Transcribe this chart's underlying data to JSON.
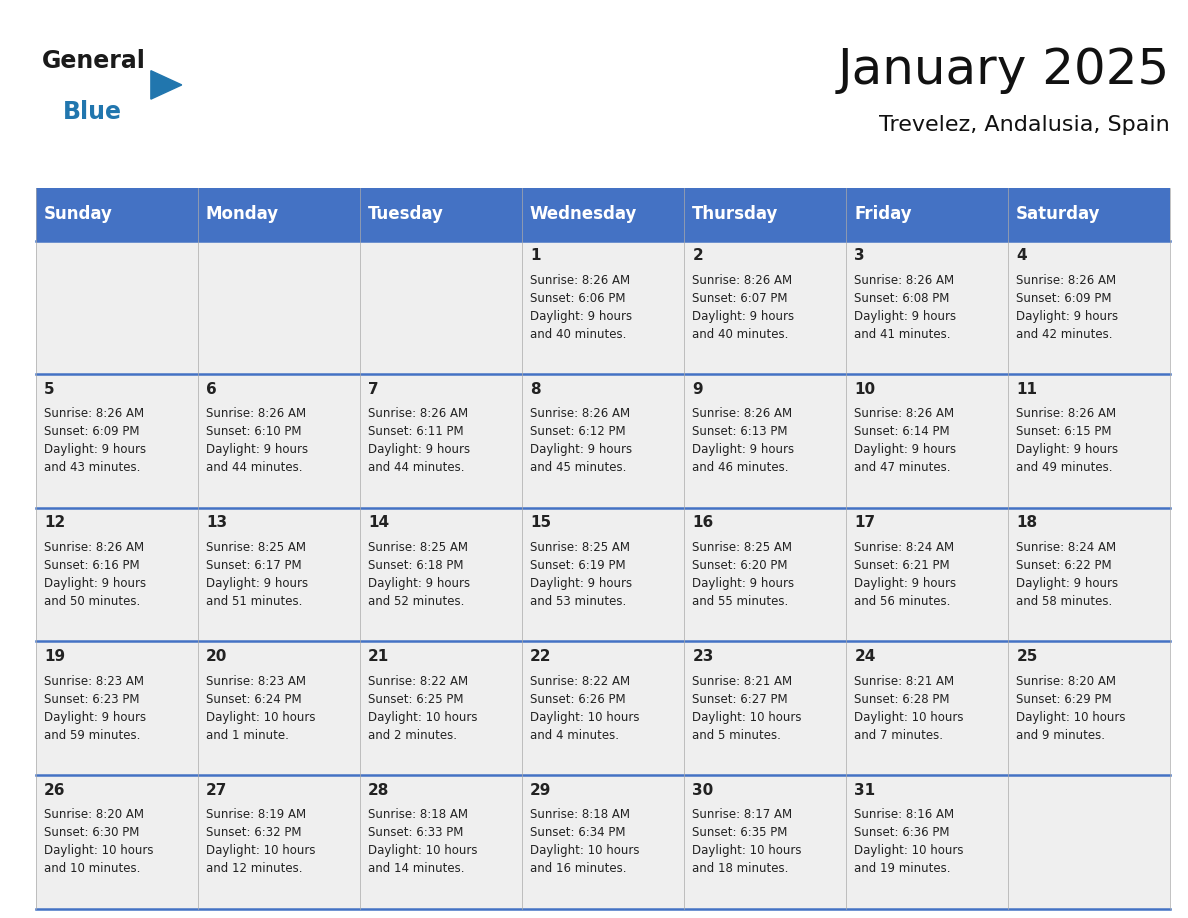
{
  "title": "January 2025",
  "subtitle": "Trevelez, Andalusia, Spain",
  "header_bg": "#4472C4",
  "header_text_color": "#FFFFFF",
  "cell_bg": "#EFEFEF",
  "cell_text_color": "#222222",
  "day_num_color": "#222222",
  "row_divider_color": "#4472C4",
  "day_headers": [
    "Sunday",
    "Monday",
    "Tuesday",
    "Wednesday",
    "Thursday",
    "Friday",
    "Saturday"
  ],
  "weeks": [
    [
      {
        "day": "",
        "info": ""
      },
      {
        "day": "",
        "info": ""
      },
      {
        "day": "",
        "info": ""
      },
      {
        "day": "1",
        "info": "Sunrise: 8:26 AM\nSunset: 6:06 PM\nDaylight: 9 hours\nand 40 minutes."
      },
      {
        "day": "2",
        "info": "Sunrise: 8:26 AM\nSunset: 6:07 PM\nDaylight: 9 hours\nand 40 minutes."
      },
      {
        "day": "3",
        "info": "Sunrise: 8:26 AM\nSunset: 6:08 PM\nDaylight: 9 hours\nand 41 minutes."
      },
      {
        "day": "4",
        "info": "Sunrise: 8:26 AM\nSunset: 6:09 PM\nDaylight: 9 hours\nand 42 minutes."
      }
    ],
    [
      {
        "day": "5",
        "info": "Sunrise: 8:26 AM\nSunset: 6:09 PM\nDaylight: 9 hours\nand 43 minutes."
      },
      {
        "day": "6",
        "info": "Sunrise: 8:26 AM\nSunset: 6:10 PM\nDaylight: 9 hours\nand 44 minutes."
      },
      {
        "day": "7",
        "info": "Sunrise: 8:26 AM\nSunset: 6:11 PM\nDaylight: 9 hours\nand 44 minutes."
      },
      {
        "day": "8",
        "info": "Sunrise: 8:26 AM\nSunset: 6:12 PM\nDaylight: 9 hours\nand 45 minutes."
      },
      {
        "day": "9",
        "info": "Sunrise: 8:26 AM\nSunset: 6:13 PM\nDaylight: 9 hours\nand 46 minutes."
      },
      {
        "day": "10",
        "info": "Sunrise: 8:26 AM\nSunset: 6:14 PM\nDaylight: 9 hours\nand 47 minutes."
      },
      {
        "day": "11",
        "info": "Sunrise: 8:26 AM\nSunset: 6:15 PM\nDaylight: 9 hours\nand 49 minutes."
      }
    ],
    [
      {
        "day": "12",
        "info": "Sunrise: 8:26 AM\nSunset: 6:16 PM\nDaylight: 9 hours\nand 50 minutes."
      },
      {
        "day": "13",
        "info": "Sunrise: 8:25 AM\nSunset: 6:17 PM\nDaylight: 9 hours\nand 51 minutes."
      },
      {
        "day": "14",
        "info": "Sunrise: 8:25 AM\nSunset: 6:18 PM\nDaylight: 9 hours\nand 52 minutes."
      },
      {
        "day": "15",
        "info": "Sunrise: 8:25 AM\nSunset: 6:19 PM\nDaylight: 9 hours\nand 53 minutes."
      },
      {
        "day": "16",
        "info": "Sunrise: 8:25 AM\nSunset: 6:20 PM\nDaylight: 9 hours\nand 55 minutes."
      },
      {
        "day": "17",
        "info": "Sunrise: 8:24 AM\nSunset: 6:21 PM\nDaylight: 9 hours\nand 56 minutes."
      },
      {
        "day": "18",
        "info": "Sunrise: 8:24 AM\nSunset: 6:22 PM\nDaylight: 9 hours\nand 58 minutes."
      }
    ],
    [
      {
        "day": "19",
        "info": "Sunrise: 8:23 AM\nSunset: 6:23 PM\nDaylight: 9 hours\nand 59 minutes."
      },
      {
        "day": "20",
        "info": "Sunrise: 8:23 AM\nSunset: 6:24 PM\nDaylight: 10 hours\nand 1 minute."
      },
      {
        "day": "21",
        "info": "Sunrise: 8:22 AM\nSunset: 6:25 PM\nDaylight: 10 hours\nand 2 minutes."
      },
      {
        "day": "22",
        "info": "Sunrise: 8:22 AM\nSunset: 6:26 PM\nDaylight: 10 hours\nand 4 minutes."
      },
      {
        "day": "23",
        "info": "Sunrise: 8:21 AM\nSunset: 6:27 PM\nDaylight: 10 hours\nand 5 minutes."
      },
      {
        "day": "24",
        "info": "Sunrise: 8:21 AM\nSunset: 6:28 PM\nDaylight: 10 hours\nand 7 minutes."
      },
      {
        "day": "25",
        "info": "Sunrise: 8:20 AM\nSunset: 6:29 PM\nDaylight: 10 hours\nand 9 minutes."
      }
    ],
    [
      {
        "day": "26",
        "info": "Sunrise: 8:20 AM\nSunset: 6:30 PM\nDaylight: 10 hours\nand 10 minutes."
      },
      {
        "day": "27",
        "info": "Sunrise: 8:19 AM\nSunset: 6:32 PM\nDaylight: 10 hours\nand 12 minutes."
      },
      {
        "day": "28",
        "info": "Sunrise: 8:18 AM\nSunset: 6:33 PM\nDaylight: 10 hours\nand 14 minutes."
      },
      {
        "day": "29",
        "info": "Sunrise: 8:18 AM\nSunset: 6:34 PM\nDaylight: 10 hours\nand 16 minutes."
      },
      {
        "day": "30",
        "info": "Sunrise: 8:17 AM\nSunset: 6:35 PM\nDaylight: 10 hours\nand 18 minutes."
      },
      {
        "day": "31",
        "info": "Sunrise: 8:16 AM\nSunset: 6:36 PM\nDaylight: 10 hours\nand 19 minutes."
      },
      {
        "day": "",
        "info": ""
      }
    ]
  ],
  "logo_general_color": "#1a1a1a",
  "logo_blue_color": "#2176AE",
  "logo_triangle_color": "#2176AE",
  "title_fontsize": 36,
  "subtitle_fontsize": 16,
  "header_fontsize": 12,
  "day_num_fontsize": 11,
  "info_fontsize": 8.5
}
